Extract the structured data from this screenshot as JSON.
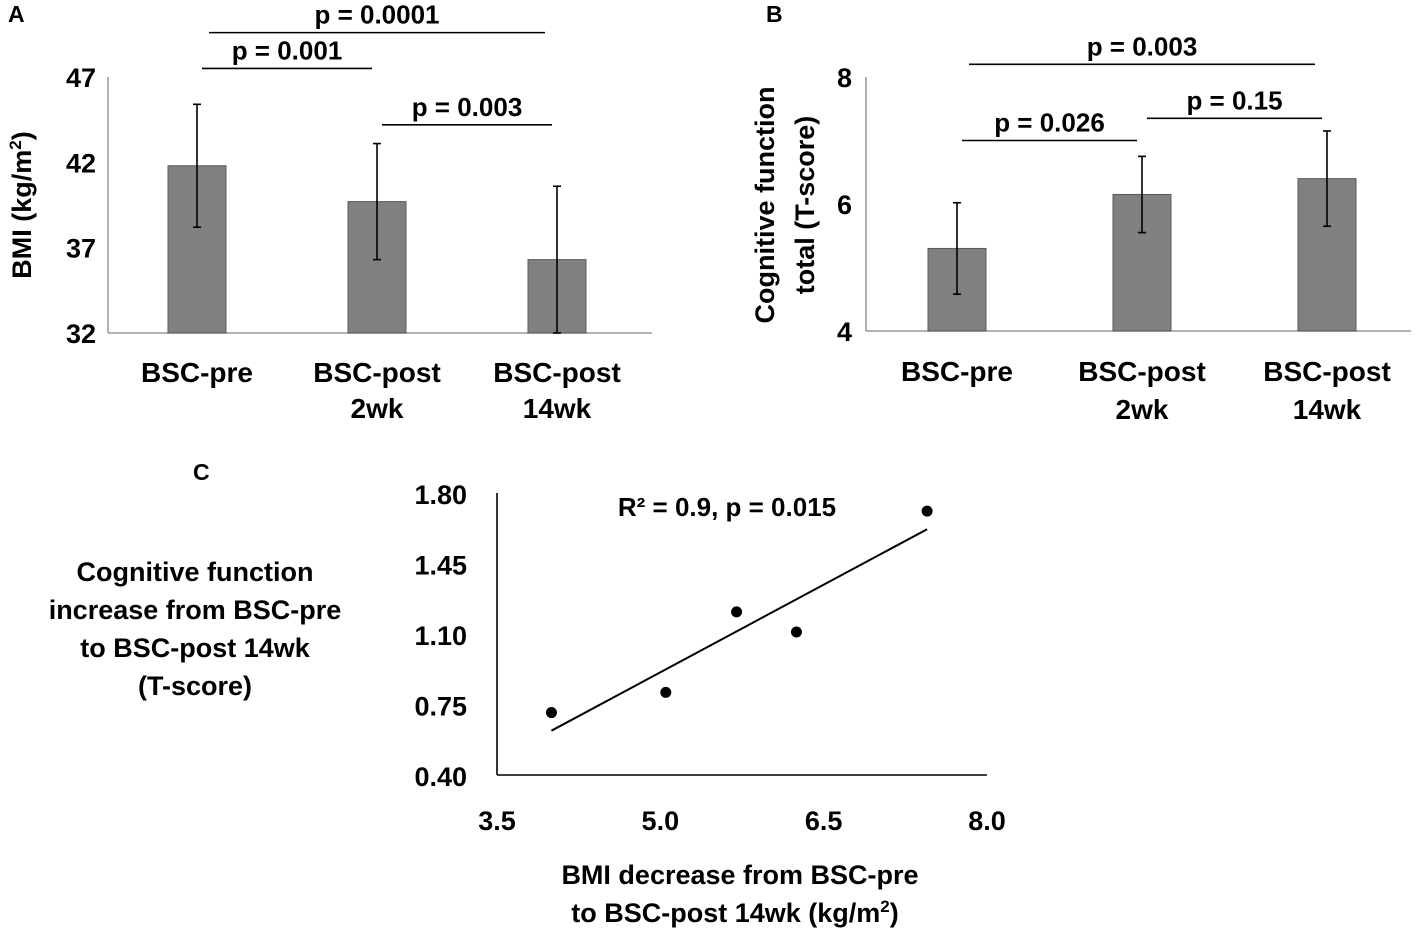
{
  "chart_data": [
    {
      "type": "bar",
      "panel": "A",
      "categories": [
        [
          "BSC-pre"
        ],
        [
          "BSC-post",
          "2wk"
        ],
        [
          "BSC-post",
          "14wk"
        ]
      ],
      "values": [
        41.8,
        39.7,
        36.3
      ],
      "error": [
        3.6,
        3.4,
        4.3
      ],
      "ylabel": "BMI (kg/m",
      "ylabel_sup": "2",
      "ylabel_close": ")",
      "ylim": [
        32,
        47
      ],
      "yticks": [
        32,
        37,
        42,
        47
      ],
      "bar_color": "#808080",
      "comparisons": [
        {
          "from": 0,
          "to": 1,
          "label": "p = 0.001",
          "level": 47.5
        },
        {
          "from": 1,
          "to": 2,
          "label": "p = 0.003",
          "level": 44.2
        },
        {
          "from": 0,
          "to": 2,
          "label": "p = 0.0001",
          "level": 49.6
        }
      ]
    },
    {
      "type": "bar",
      "panel": "B",
      "categories": [
        [
          "BSC-pre"
        ],
        [
          "BSC-post",
          "2wk"
        ],
        [
          "BSC-post",
          "14wk"
        ]
      ],
      "values": [
        5.3,
        6.15,
        6.4
      ],
      "error": [
        0.72,
        0.6,
        0.75
      ],
      "ylabel_lines": [
        "Cognitive function",
        "total (T-score)"
      ],
      "ylim": [
        4,
        8
      ],
      "yticks": [
        4,
        6,
        8
      ],
      "bar_color": "#808080",
      "comparisons": [
        {
          "from": 0,
          "to": 1,
          "label": "p = 0.026",
          "level": 7.0
        },
        {
          "from": 1,
          "to": 2,
          "label": "p = 0.15",
          "level": 7.35
        },
        {
          "from": 0,
          "to": 2,
          "label": "p = 0.003",
          "level": 8.2
        }
      ]
    },
    {
      "type": "scatter",
      "panel": "C",
      "points": [
        {
          "x": 4.0,
          "y": 0.71
        },
        {
          "x": 5.05,
          "y": 0.81
        },
        {
          "x": 5.7,
          "y": 1.21
        },
        {
          "x": 6.25,
          "y": 1.11
        },
        {
          "x": 7.45,
          "y": 1.71
        }
      ],
      "trendline": {
        "x": [
          4.0,
          7.45
        ],
        "y": [
          0.62,
          1.62
        ]
      },
      "xlim": [
        3.5,
        8.0
      ],
      "ylim": [
        0.4,
        1.8
      ],
      "xticks": [
        "3.5",
        "5.0",
        "6.5",
        "8.0"
      ],
      "yticks": [
        "0.40",
        "0.75",
        "1.10",
        "1.45",
        "1.80"
      ],
      "annotation": "R² = 0.9, p = 0.015",
      "xlabel_lines": [
        "BMI decrease from BSC-pre",
        "to BSC-post 14wk (kg/m"
      ],
      "xlabel_sup": "2",
      "xlabel_close": ")",
      "ylabel_lines": [
        "Cognitive function",
        "increase from BSC-pre",
        "to BSC-post 14wk",
        "(T-score)"
      ]
    }
  ]
}
